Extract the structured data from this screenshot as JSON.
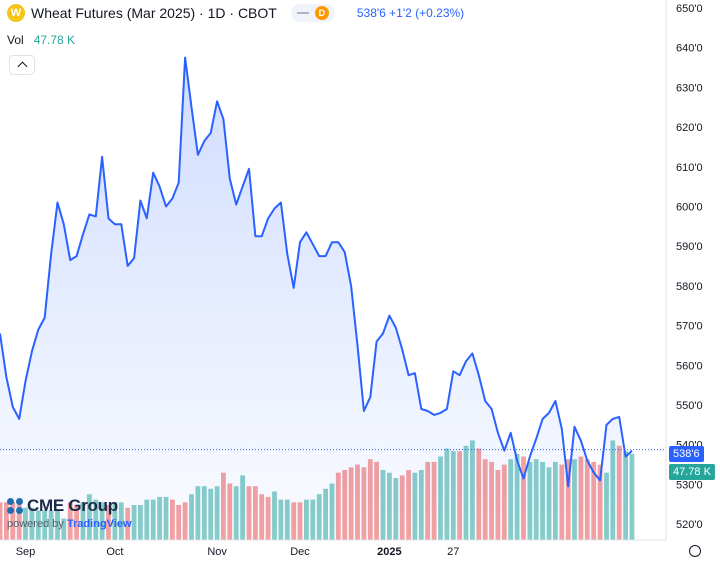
{
  "header": {
    "symbol_icon": "wheat-icon",
    "symbol_letter": "W",
    "title": "Wheat Futures (Mar 2025) · 1D · CBOT",
    "market_status": "D",
    "price_change": "538'6  +1'2 (+0.23%)"
  },
  "volume": {
    "label": "Vol",
    "value": "47.78 K"
  },
  "logo": {
    "brand": "CME Group",
    "powered_by": "powered by",
    "platform": "TradingView"
  },
  "price_tag": "538'6",
  "volume_tag": "47.78 K",
  "colors": {
    "line": "#2962ff",
    "up": "#26a69a",
    "down": "#ef5350",
    "accent": "#2962ff"
  },
  "chart_data": {
    "type": "line",
    "title": "Wheat Futures (Mar 2025) · 1D · CBOT",
    "xlabel": "",
    "ylabel": "",
    "ylim": [
      516,
      652
    ],
    "y_ticks": [
      "520'0",
      "530'0",
      "540'0",
      "550'0",
      "560'0",
      "570'0",
      "580'0",
      "590'0",
      "600'0",
      "610'0",
      "620'0",
      "630'0",
      "640'0",
      "650'0"
    ],
    "x_ticks": [
      "Sep",
      "Oct",
      "Nov",
      "Dec",
      "2025",
      "27"
    ],
    "x_tick_index": [
      4,
      18,
      34,
      47,
      61,
      71
    ],
    "grid": false,
    "legend": "none",
    "current_price": 538.75,
    "series": [
      {
        "values": [
          568,
          557,
          549.5,
          546.5,
          556,
          563.5,
          569,
          572,
          588,
          601,
          595.5,
          586.5,
          587.5,
          593,
          598,
          597.5,
          612.5,
          597,
          595.5,
          595.5,
          585,
          587,
          601.5,
          597,
          608.5,
          605,
          600,
          602,
          606,
          637.5,
          625,
          613,
          616.5,
          618.5,
          626.5,
          622,
          607,
          600.5,
          605,
          609.5,
          592.5,
          592.5,
          597,
          599.5,
          601,
          588,
          579.5,
          591,
          593.5,
          590.5,
          587.5,
          587.5,
          591,
          591,
          588.5,
          580,
          565,
          548.5,
          552,
          566,
          568,
          572.5,
          569.5,
          564,
          557.5,
          558,
          549,
          548.5,
          547.5,
          548,
          549,
          558.5,
          557.5,
          561,
          563,
          557.5,
          551,
          549,
          543,
          538.5,
          543,
          536,
          531.5,
          537,
          541.5,
          546.5,
          548,
          551,
          544,
          529.5,
          544.5,
          541,
          536,
          533,
          531,
          545,
          546.5,
          547,
          537,
          538.5
        ]
      }
    ],
    "volume": {
      "values": [
        14,
        14,
        14,
        14,
        12,
        12,
        11,
        11,
        11,
        11,
        8,
        14,
        13,
        14,
        17,
        15,
        14,
        13,
        14,
        14,
        12,
        13,
        13,
        15,
        15,
        16,
        16,
        15,
        13,
        14,
        17,
        20,
        20,
        19,
        20,
        25,
        21,
        20,
        24,
        20,
        20,
        17,
        16,
        18,
        15,
        15,
        14,
        14,
        15,
        15,
        17,
        19,
        21,
        25,
        26,
        27,
        28,
        27,
        30,
        29,
        26,
        25,
        23,
        24,
        26,
        25,
        26,
        29,
        29,
        31,
        34,
        33,
        33,
        35,
        37,
        34,
        30,
        29,
        26,
        28,
        30,
        32,
        31,
        29,
        30,
        29,
        27,
        29,
        28,
        30,
        30,
        31,
        30,
        29,
        28,
        25,
        37,
        35,
        33,
        32
      ],
      "direction": [
        "down",
        "down",
        "down",
        "down",
        "up",
        "up",
        "up",
        "up",
        "up",
        "up",
        "up",
        "down",
        "down",
        "up",
        "up",
        "up",
        "up",
        "down",
        "up",
        "up",
        "down",
        "up",
        "up",
        "up",
        "up",
        "up",
        "up",
        "down",
        "down",
        "down",
        "up",
        "up",
        "up",
        "up",
        "up",
        "down",
        "down",
        "up",
        "up",
        "down",
        "down",
        "down",
        "down",
        "up",
        "up",
        "up",
        "down",
        "down",
        "up",
        "up",
        "up",
        "up",
        "up",
        "down",
        "down",
        "down",
        "down",
        "down",
        "down",
        "down",
        "up",
        "up",
        "up",
        "down",
        "down",
        "up",
        "up",
        "down",
        "down",
        "up",
        "up",
        "up",
        "down",
        "up",
        "up",
        "down",
        "down",
        "down",
        "down",
        "down",
        "up",
        "up",
        "down",
        "up",
        "up",
        "up",
        "up",
        "up",
        "down",
        "down",
        "up",
        "down",
        "down",
        "down",
        "down",
        "up",
        "up",
        "down",
        "up",
        "up"
      ],
      "scale_max": 52
    }
  }
}
